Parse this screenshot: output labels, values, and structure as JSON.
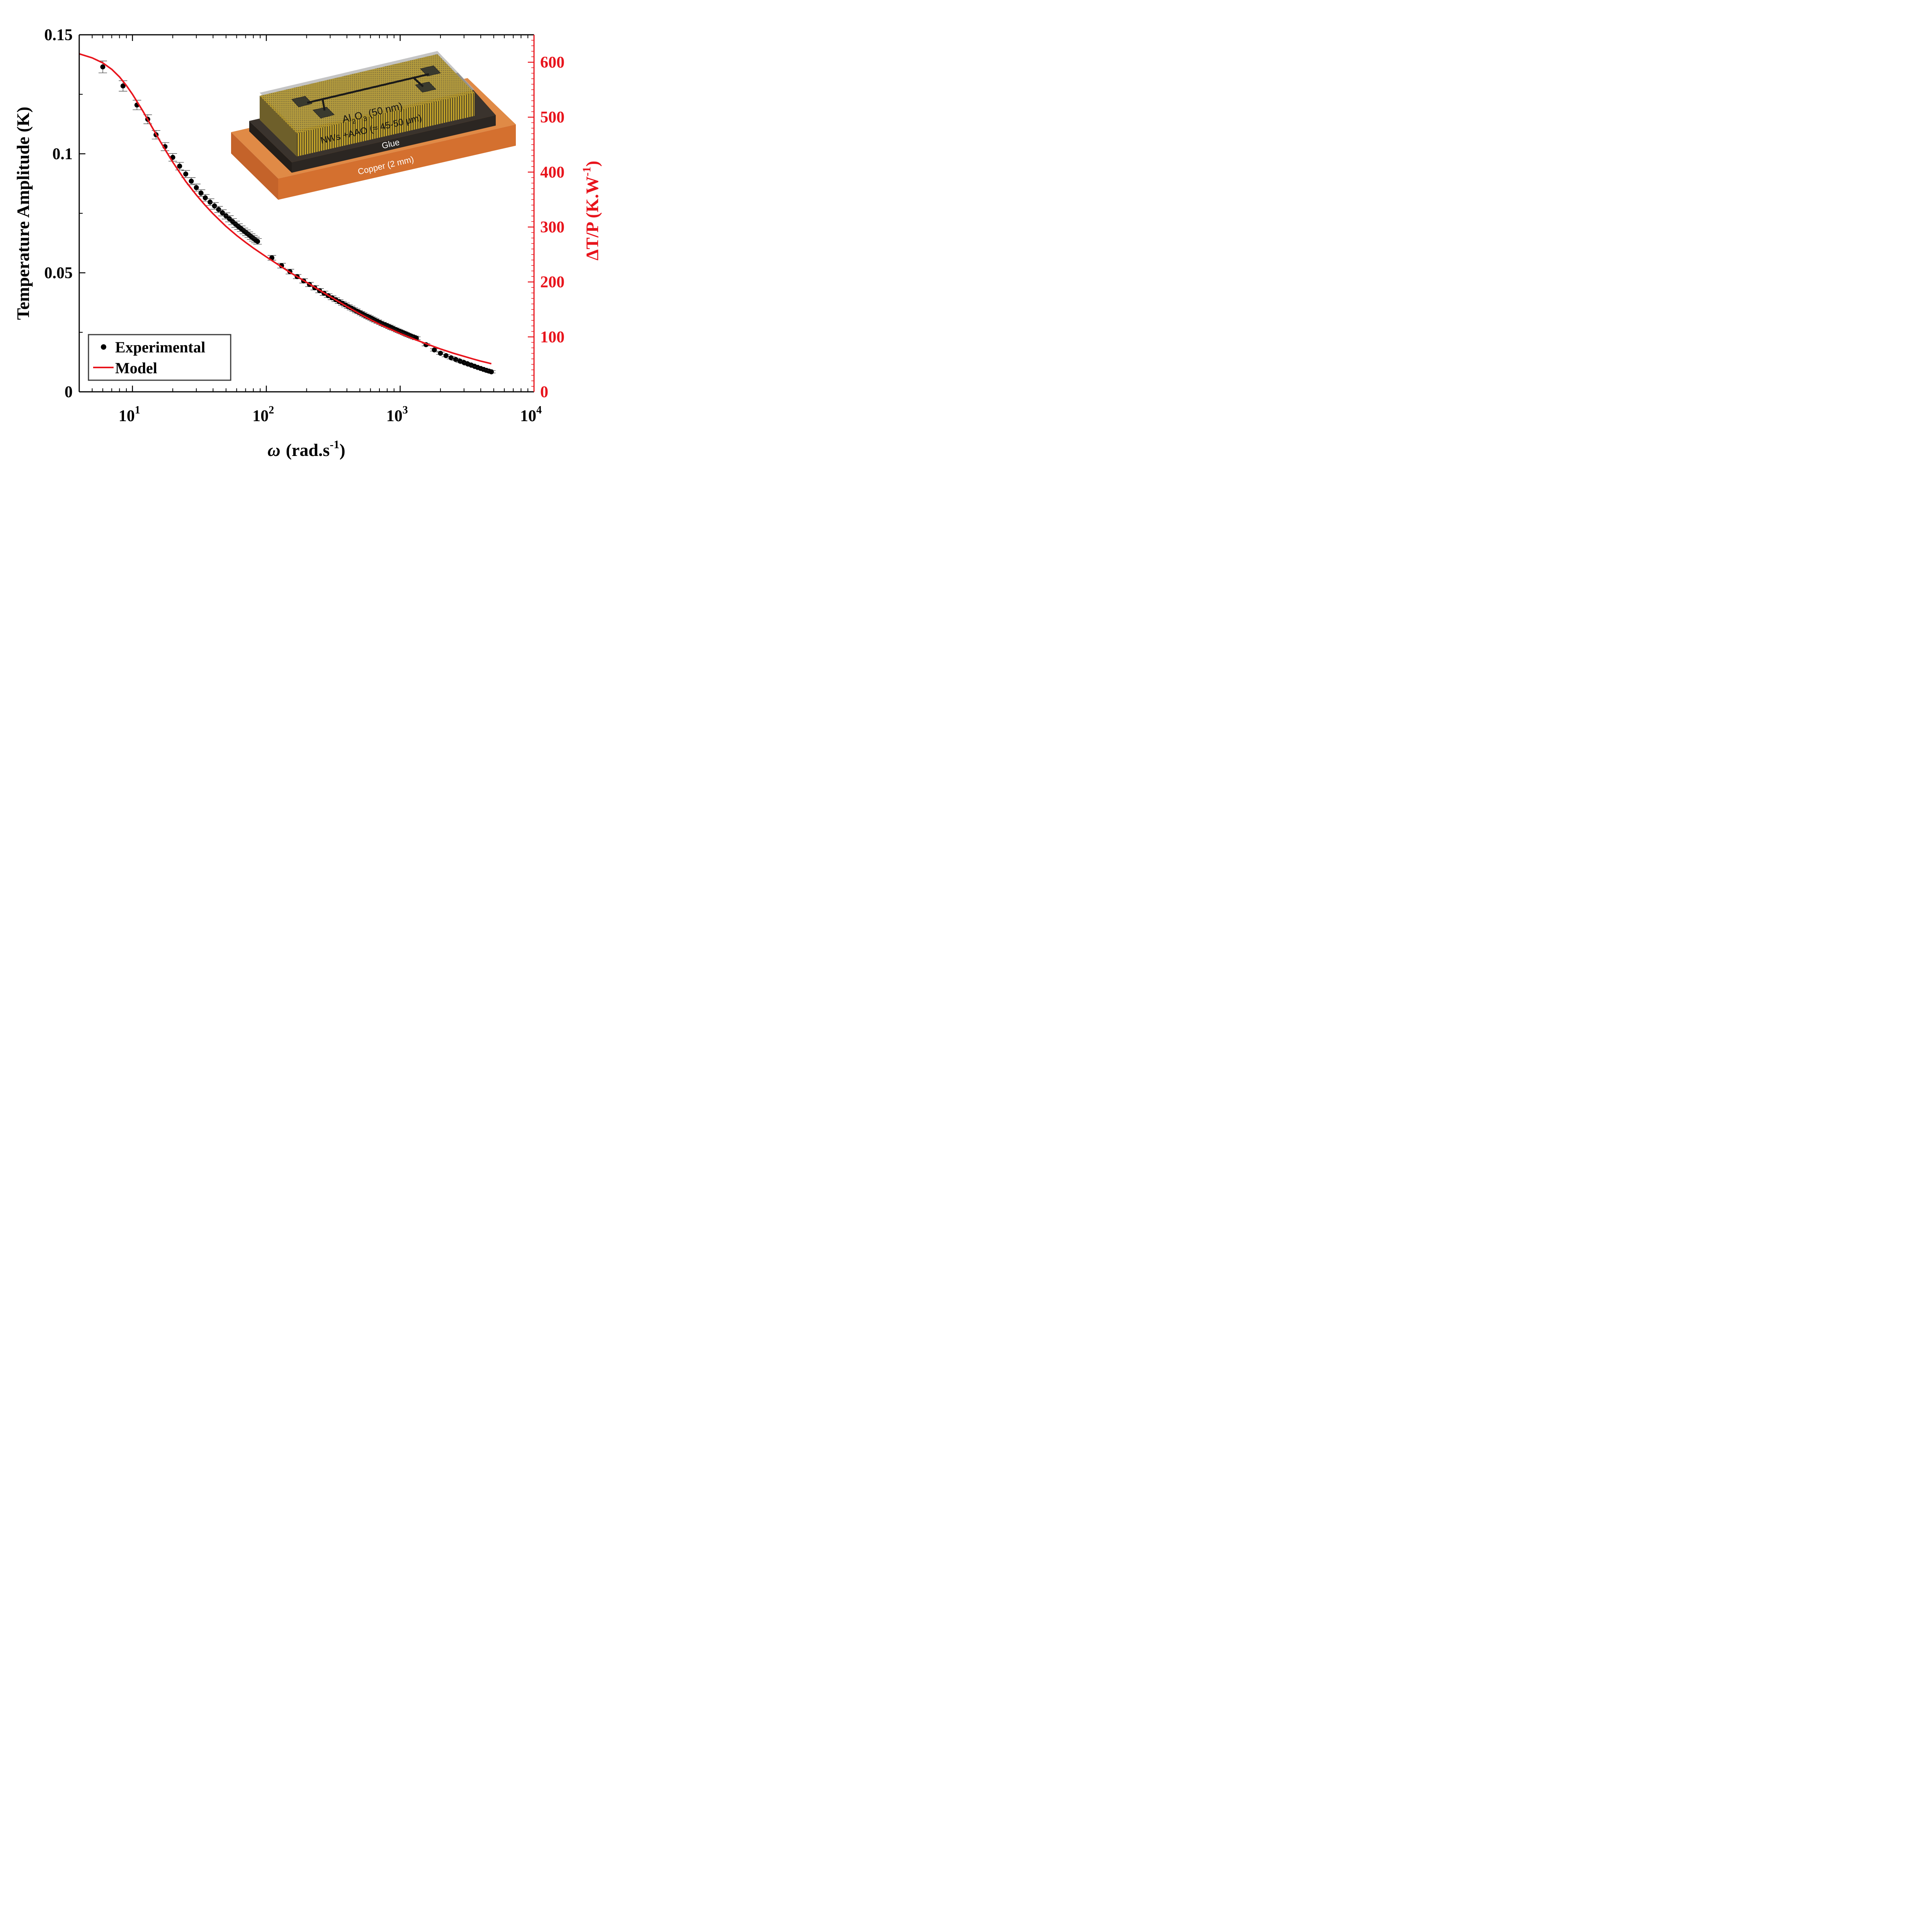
{
  "chart_data": {
    "type": "scatter",
    "xlabel_symbol": "ω",
    "xlabel_unit": "(rad.s",
    "xlabel_exp": "-1",
    "xlabel_close": ")",
    "ylabel": "Temperature Amplitude (K)",
    "y2label_main": "ΔT/P (K.W",
    "y2label_exp": "-1",
    "y2label_close": ")",
    "xscale": "log",
    "xlim": [
      4,
      10000
    ],
    "ylim": [
      0,
      0.15
    ],
    "y2lim": [
      0,
      650
    ],
    "x_ticks": [
      {
        "base": "10",
        "exp": "1",
        "value": 10
      },
      {
        "base": "10",
        "exp": "2",
        "value": 100
      },
      {
        "base": "10",
        "exp": "3",
        "value": 1000
      },
      {
        "base": "10",
        "exp": "4",
        "value": 10000
      }
    ],
    "y_ticks": [
      {
        "label": "0",
        "value": 0
      },
      {
        "label": "0.05",
        "value": 0.05
      },
      {
        "label": "0.1",
        "value": 0.1
      },
      {
        "label": "0.15",
        "value": 0.15
      }
    ],
    "y2_ticks": [
      {
        "label": "0",
        "value": 0
      },
      {
        "label": "100",
        "value": 100
      },
      {
        "label": "200",
        "value": 200
      },
      {
        "label": "300",
        "value": 300
      },
      {
        "label": "400",
        "value": 400
      },
      {
        "label": "500",
        "value": 500
      },
      {
        "label": "600",
        "value": 600
      }
    ],
    "legend": {
      "position": "bottom-left",
      "entries": [
        {
          "label": "Experimental",
          "marker": "dot",
          "color": "#000000"
        },
        {
          "label": "Model",
          "marker": "line",
          "color": "#e8141c"
        }
      ]
    },
    "series": [
      {
        "name": "Experimental",
        "color": "#000000",
        "x": [
          6,
          8.5,
          10.8,
          13,
          15,
          17.5,
          20,
          22.5,
          25,
          27.5,
          30,
          32.5,
          35,
          38,
          41,
          44,
          47,
          50,
          53,
          56,
          59,
          62,
          65,
          68,
          71,
          74,
          77,
          80,
          83,
          86,
          110,
          130,
          150,
          170,
          190,
          210,
          230,
          250,
          270,
          290,
          310,
          330,
          350,
          370,
          390,
          410,
          430,
          450,
          470,
          490,
          510,
          530,
          550,
          570,
          590,
          610,
          630,
          650,
          680,
          710,
          740,
          770,
          800,
          830,
          860,
          890,
          920,
          950,
          980,
          1010,
          1040,
          1070,
          1100,
          1130,
          1160,
          1200,
          1240,
          1280,
          1320,
          1560,
          1800,
          2000,
          2200,
          2400,
          2600,
          2800,
          3000,
          3200,
          3400,
          3600,
          3800,
          4000,
          4200,
          4400,
          4600,
          4800
        ],
        "y": [
          0.1365,
          0.1285,
          0.1205,
          0.1145,
          0.108,
          0.103,
          0.0985,
          0.0948,
          0.0915,
          0.0885,
          0.0858,
          0.0835,
          0.0815,
          0.0797,
          0.0781,
          0.0766,
          0.0752,
          0.0739,
          0.0727,
          0.0715,
          0.0704,
          0.0694,
          0.0685,
          0.0676,
          0.0668,
          0.066,
          0.0652,
          0.0645,
          0.0638,
          0.0632,
          0.0563,
          0.053,
          0.0505,
          0.0484,
          0.0466,
          0.0451,
          0.0437,
          0.0425,
          0.0414,
          0.0404,
          0.0395,
          0.0387,
          0.0379,
          0.0372,
          0.0365,
          0.0358,
          0.0352,
          0.0346,
          0.034,
          0.0335,
          0.033,
          0.0325,
          0.032,
          0.0316,
          0.0312,
          0.0308,
          0.0304,
          0.03,
          0.0295,
          0.029,
          0.0285,
          0.0281,
          0.0277,
          0.0273,
          0.0269,
          0.0265,
          0.0262,
          0.0258,
          0.0255,
          0.0252,
          0.0249,
          0.0246,
          0.0243,
          0.024,
          0.0237,
          0.0234,
          0.0231,
          0.0228,
          0.0225,
          0.0198,
          0.0176,
          0.0162,
          0.0152,
          0.0143,
          0.0136,
          0.0129,
          0.0123,
          0.0117,
          0.0112,
          0.0107,
          0.0102,
          0.0098,
          0.0094,
          0.009,
          0.0087,
          0.0084
        ],
        "err": [
          0.0025,
          0.0022,
          0.002,
          0.0019,
          0.0018,
          0.0017,
          0.0016,
          0.0016,
          0.0015,
          0.0015,
          0.0015,
          0.0014,
          0.0014,
          0.0014,
          0.0014,
          0.0013,
          0.0013,
          0.0013,
          0.0013,
          0.0013,
          0.0013,
          0.0012,
          0.0012,
          0.0012,
          0.0012,
          0.0012,
          0.0012,
          0.0012,
          0.0012,
          0.0012,
          0.001,
          0.001,
          0.001,
          0.0009,
          0.0009,
          0.0009,
          0.0009,
          0.0009,
          0.0009,
          0.0008,
          0.0008,
          0.0008,
          0.0008,
          0.0008,
          0.0008,
          0.0008,
          0.0008,
          0.0008,
          0.0008,
          0.0007,
          0.0007,
          0.0007,
          0.0007,
          0.0007,
          0.0007,
          0.0007,
          0.0007,
          0.0007,
          0.0007,
          0.0007,
          0.0007,
          0.0007,
          0.0007,
          0.0007,
          0.0007,
          0.0006,
          0.0006,
          0.0006,
          0.0006,
          0.0006,
          0.0006,
          0.0006,
          0.0006,
          0.0006,
          0.0006,
          0.0006,
          0.0006,
          0.0006,
          0.0006,
          0.0005,
          0.0005,
          0.0005,
          0.0005,
          0.0005,
          0.0005,
          0.0005,
          0.0005,
          0.0005,
          0.0005,
          0.0005,
          0.0005,
          0.0005,
          0.0005,
          0.0005,
          0.0005,
          0.0005
        ]
      },
      {
        "name": "Model",
        "color": "#e8141c",
        "x": [
          4,
          5,
          6,
          7,
          8,
          9,
          10,
          12,
          14,
          16,
          18,
          20,
          25,
          30,
          35,
          40,
          50,
          60,
          70,
          80,
          100,
          150,
          200,
          300,
          400,
          500,
          600,
          700,
          800,
          1000,
          1300,
          1600,
          2000,
          2500,
          3000,
          3500,
          4000,
          4500,
          4800
        ],
        "y": [
          0.142,
          0.1403,
          0.1382,
          0.1355,
          0.1323,
          0.1287,
          0.125,
          0.1178,
          0.1112,
          0.1055,
          0.1007,
          0.0965,
          0.0884,
          0.0827,
          0.0783,
          0.0748,
          0.0695,
          0.0657,
          0.0628,
          0.0604,
          0.0567,
          0.0502,
          0.046,
          0.04,
          0.0358,
          0.0327,
          0.0303,
          0.0284,
          0.0269,
          0.0245,
          0.0219,
          0.02,
          0.018,
          0.0162,
          0.0149,
          0.0138,
          0.0129,
          0.0122,
          0.0118
        ]
      }
    ]
  },
  "inset": {
    "layer_al2o3_prefix": "Al",
    "layer_al2o3_sub1": "2",
    "layer_al2o3_mid": "O",
    "layer_al2o3_sub2": "3",
    "layer_al2o3_suffix": " (50 nm)",
    "layer_nws": "NWs +AAO (≈ 45-50 µm)",
    "layer_glue": "Glue",
    "layer_copper": "Copper (2 mm)",
    "colors": {
      "copper": "#d9752e",
      "glue": "#2b2622",
      "nws": "#c9a82a",
      "alumina": "#9a9a9a",
      "pads": "#3a3a2e"
    }
  }
}
